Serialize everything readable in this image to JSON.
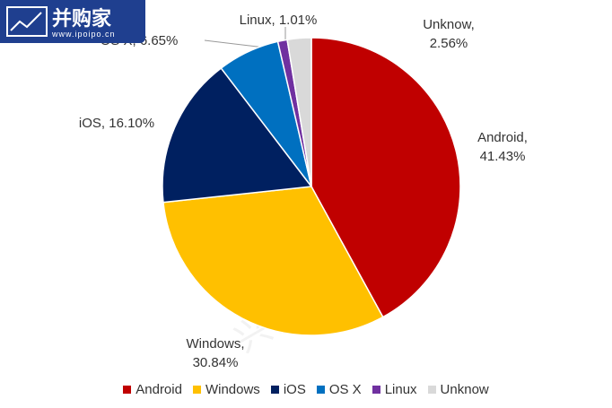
{
  "logo": {
    "name": "并购家",
    "url": "www.ipoipo.cn"
  },
  "watermark": "兴证计算机",
  "chart_data": {
    "type": "pie",
    "categories": [
      "Android",
      "Windows",
      "iOS",
      "OS X",
      "Linux",
      "Unknow"
    ],
    "values": [
      41.43,
      30.84,
      16.1,
      6.65,
      1.01,
      2.56
    ],
    "value_labels": [
      "Android, 41.43%",
      "Windows, 30.84%",
      "iOS, 16.10%",
      "OS X, 6.65%",
      "Linux, 1.01%",
      "Unknow, 2.56%"
    ],
    "colors": [
      "#c00000",
      "#ffc000",
      "#002060",
      "#0070c0",
      "#7030a0",
      "#d9d9d9"
    ],
    "legend": "bottom"
  }
}
